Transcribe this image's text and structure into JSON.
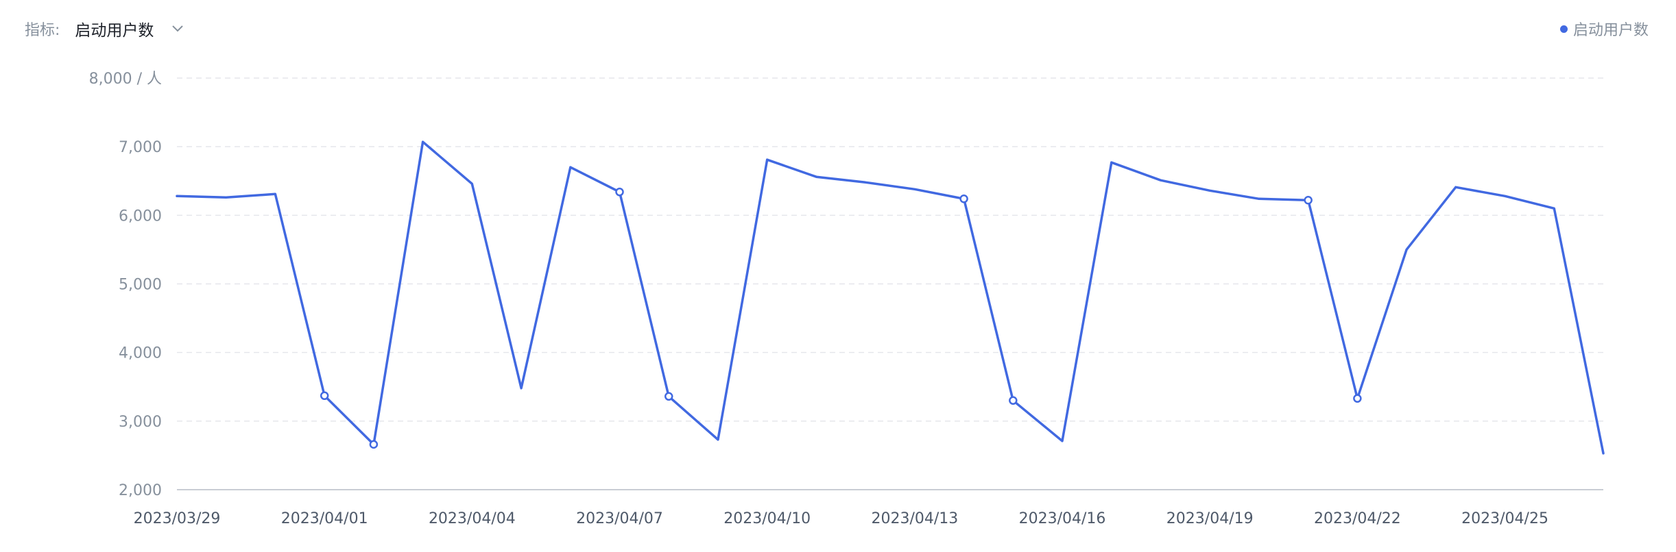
{
  "toolbar": {
    "metric_label": "指标:",
    "metric_value": "启动用户数",
    "chevron_icon": "chevron-down-icon"
  },
  "chart_data": {
    "type": "line",
    "title": "",
    "xlabel": "",
    "ylabel": "",
    "y_unit": "人",
    "ylim": [
      2000,
      8000
    ],
    "yticks": [
      2000,
      3000,
      4000,
      5000,
      6000,
      7000,
      8000
    ],
    "grid": true,
    "legend_position": "top-right",
    "line_color": "#4169e1",
    "x": [
      "2023/03/29",
      "2023/03/30",
      "2023/03/31",
      "2023/04/01",
      "2023/04/02",
      "2023/04/03",
      "2023/04/04",
      "2023/04/05",
      "2023/04/06",
      "2023/04/07",
      "2023/04/08",
      "2023/04/09",
      "2023/04/10",
      "2023/04/11",
      "2023/04/12",
      "2023/04/13",
      "2023/04/14",
      "2023/04/15",
      "2023/04/16",
      "2023/04/17",
      "2023/04/18",
      "2023/04/19",
      "2023/04/20",
      "2023/04/21",
      "2023/04/22",
      "2023/04/23",
      "2023/04/24",
      "2023/04/25",
      "2023/04/26",
      "2023/04/27"
    ],
    "x_tick_labels": [
      "2023/03/29",
      "2023/04/01",
      "2023/04/04",
      "2023/04/07",
      "2023/04/10",
      "2023/04/13",
      "2023/04/16",
      "2023/04/19",
      "2023/04/22",
      "2023/04/25"
    ],
    "series": [
      {
        "name": "启动用户数",
        "values": [
          6280,
          6260,
          6310,
          3370,
          2660,
          7070,
          6460,
          3480,
          6700,
          6340,
          3360,
          2730,
          6810,
          6560,
          6480,
          6380,
          6240,
          3300,
          2710,
          6770,
          6510,
          6360,
          6240,
          6220,
          3330,
          5500,
          6410,
          6280,
          6100,
          2530
        ],
        "marked_points": [
          "2023/04/01",
          "2023/04/02",
          "2023/04/07",
          "2023/04/08",
          "2023/04/14",
          "2023/04/15",
          "2023/04/21",
          "2023/04/22"
        ]
      }
    ]
  }
}
